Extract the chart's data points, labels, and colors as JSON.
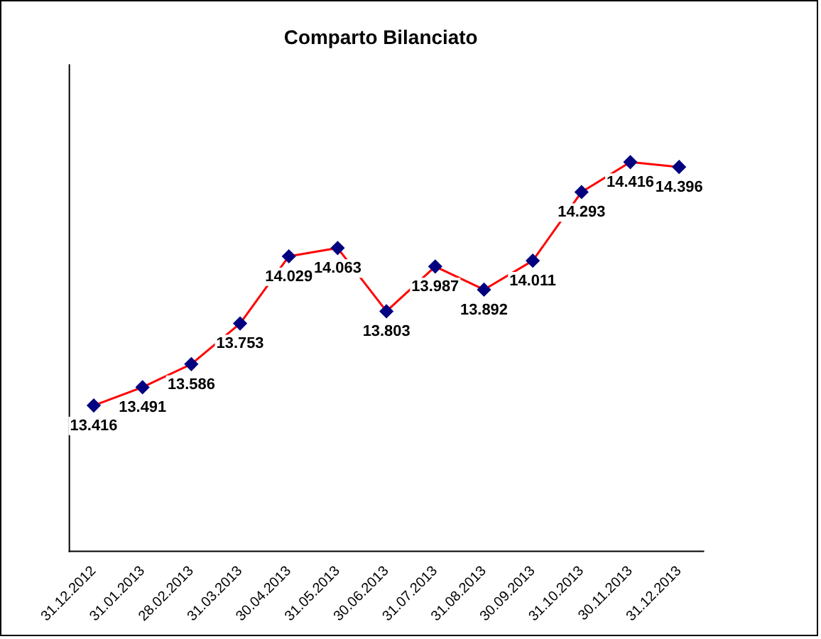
{
  "chart_data": {
    "type": "line",
    "title": "Comparto Bilanciato",
    "categories": [
      "31.12.2012",
      "31.01.2013",
      "28.02.2013",
      "31.03.2013",
      "30.04.2013",
      "31.05.2013",
      "30.06.2013",
      "31.07.2013",
      "31.08.2013",
      "30.09.2013",
      "31.10.2013",
      "30.11.2013",
      "31.12.2013"
    ],
    "series": [
      {
        "color": "#ff0000",
        "colors": [
          "#000080",
          "#000080",
          "#000080",
          "#000080",
          "#000080",
          "#000080",
          "#000080",
          "#000080",
          "#000080",
          "#000080",
          "#000080",
          "#000080",
          "#000080"
        ],
        "values": [
          13.416,
          13.491,
          13.586,
          13.753,
          14.029,
          14.063,
          13.803,
          13.987,
          13.892,
          14.011,
          14.293,
          14.416,
          14.396
        ]
      }
    ],
    "marker": "diamond",
    "data_labels": true,
    "grid": false,
    "legend": false,
    "tick_labels": "x"
  }
}
